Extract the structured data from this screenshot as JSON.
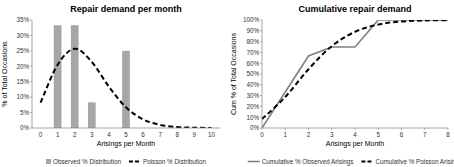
{
  "chart_data": [
    {
      "type": "bar",
      "title": "Repair demand per month",
      "x_label": "Arisings per Month",
      "y_label": "% of Total Occasions",
      "categories": [
        "0",
        "1",
        "2",
        "3",
        "4",
        "5",
        "6",
        "7",
        "8",
        "9",
        "10"
      ],
      "series": [
        {
          "name": "Observed % Distribution",
          "type": "bar",
          "color": "#a6a6a6",
          "values": [
            0,
            33.3,
            33.3,
            8.3,
            0,
            25,
            0,
            0,
            0,
            0,
            0
          ]
        },
        {
          "name": "Poisson % Distribution",
          "type": "line",
          "line_style": "dashed",
          "color": "#000000",
          "values": [
            8.2,
            20.5,
            25.7,
            21.4,
            13.4,
            6.7,
            2.8,
            1.0,
            0.3,
            0.1,
            0.0
          ]
        }
      ],
      "ylim": [
        0,
        35
      ],
      "yticks": [
        {
          "value": 0,
          "label": "0%"
        },
        {
          "value": 5,
          "label": "5%"
        },
        {
          "value": 10,
          "label": "10%"
        },
        {
          "value": 15,
          "label": "15%"
        },
        {
          "value": 20,
          "label": "20%"
        },
        {
          "value": 25,
          "label": "25%"
        },
        {
          "value": 30,
          "label": "30%"
        },
        {
          "value": 35,
          "label": "35%"
        }
      ],
      "grid": false,
      "legend": "bottom"
    },
    {
      "type": "line",
      "title": "Cumulative repair demand",
      "x_label": "Arisings per Month",
      "y_label": "Cum % of Total Occasions",
      "x": [
        0,
        1,
        2,
        3,
        4,
        5,
        6,
        7,
        8
      ],
      "series": [
        {
          "name": "Cumulative % Observed Arisings",
          "line_style": "solid",
          "color": "#808080",
          "values": [
            0,
            33.3,
            66.7,
            75,
            75,
            100,
            100,
            100,
            100
          ]
        },
        {
          "name": "Cumulative % Poisson Arisings",
          "line_style": "dashed",
          "color": "#000000",
          "values": [
            8.2,
            28.7,
            54.4,
            75.8,
            89.1,
            95.8,
            98.6,
            99.6,
            99.9
          ]
        }
      ],
      "xlim": [
        0,
        8
      ],
      "xticks": [
        0,
        1,
        2,
        3,
        4,
        5,
        6,
        7,
        8
      ],
      "ylim": [
        0,
        100
      ],
      "yticks": [
        {
          "value": 0,
          "label": "0%"
        },
        {
          "value": 10,
          "label": "10%"
        },
        {
          "value": 20,
          "label": "20%"
        },
        {
          "value": 30,
          "label": "30%"
        },
        {
          "value": 40,
          "label": "40%"
        },
        {
          "value": 50,
          "label": "50%"
        },
        {
          "value": 60,
          "label": "60%"
        },
        {
          "value": 70,
          "label": "70%"
        },
        {
          "value": 80,
          "label": "80%"
        },
        {
          "value": 90,
          "label": "90%"
        },
        {
          "value": 100,
          "label": "100%"
        }
      ],
      "grid": false,
      "legend": "bottom"
    }
  ]
}
